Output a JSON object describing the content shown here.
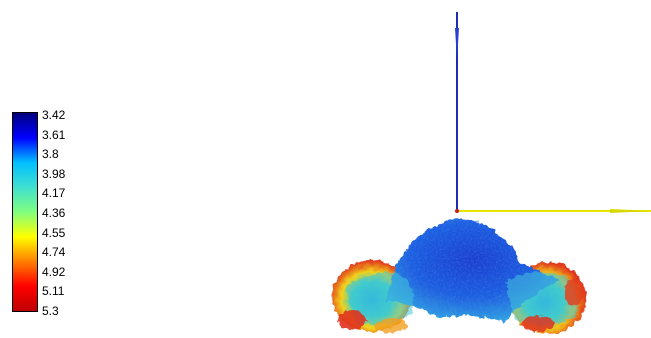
{
  "colorbar": {
    "ticks": [
      "3.42",
      "3.61",
      "3.8",
      "3.98",
      "4.17",
      "4.36",
      "4.55",
      "4.74",
      "4.92",
      "5.11",
      "5.3"
    ],
    "min": 3.42,
    "max": 5.3,
    "colormap": "jet",
    "gradient_stops": [
      "#00007f",
      "#0000ff",
      "#00bfff",
      "#40e0d0",
      "#7fff7f",
      "#ffff00",
      "#ff7f00",
      "#ff0000",
      "#bf0000"
    ]
  },
  "axes": {
    "vertical_axis_color": "#1a2fb0",
    "horizontal_axis_color": "#e6e600",
    "origin_marker_color": "#c81e1e"
  },
  "surface": {
    "description_colors": {
      "core": "#1f4fd8",
      "mid": "#37b6e6",
      "edge": "#f2c21c",
      "hot": "#e0321e"
    }
  }
}
